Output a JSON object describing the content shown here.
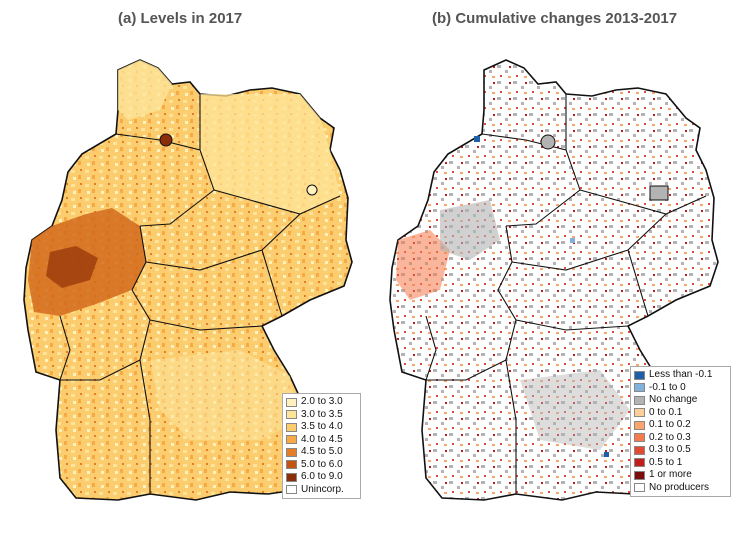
{
  "panel_a": {
    "title": "(a) Levels in 2017",
    "legend": [
      {
        "label": "2.0 to 3.0",
        "color": "#fff2bf"
      },
      {
        "label": "3.0 to 3.5",
        "color": "#fde49a"
      },
      {
        "label": "3.5 to 4.0",
        "color": "#fbcd6e"
      },
      {
        "label": "4.0 to 4.5",
        "color": "#f6a944"
      },
      {
        "label": "4.5 to 5.0",
        "color": "#e57d26"
      },
      {
        "label": "5.0 to 6.0",
        "color": "#c25414"
      },
      {
        "label": "6.0 to 9.0",
        "color": "#8a2d08"
      },
      {
        "label": "Unincorp.",
        "color": "#ffffff"
      }
    ]
  },
  "panel_b": {
    "title": "(b) Cumulative changes 2013-2017",
    "legend": [
      {
        "label": "Less than -0.1",
        "color": "#1f5fa8"
      },
      {
        "label": "-0.1 to 0",
        "color": "#7fb2dd"
      },
      {
        "label": "No change",
        "color": "#b3b3b3"
      },
      {
        "label": "0 to 0.1",
        "color": "#fdcf9a"
      },
      {
        "label": "0.1 to 0.2",
        "color": "#fca46e"
      },
      {
        "label": "0.2 to 0.3",
        "color": "#f57a4c"
      },
      {
        "label": "0.3 to 0.5",
        "color": "#e24b33"
      },
      {
        "label": "0.5 to 1",
        "color": "#c41d1d"
      },
      {
        "label": "1 or more",
        "color": "#7a0c0c"
      },
      {
        "label": "No producers",
        "color": "#ffffff"
      }
    ]
  }
}
